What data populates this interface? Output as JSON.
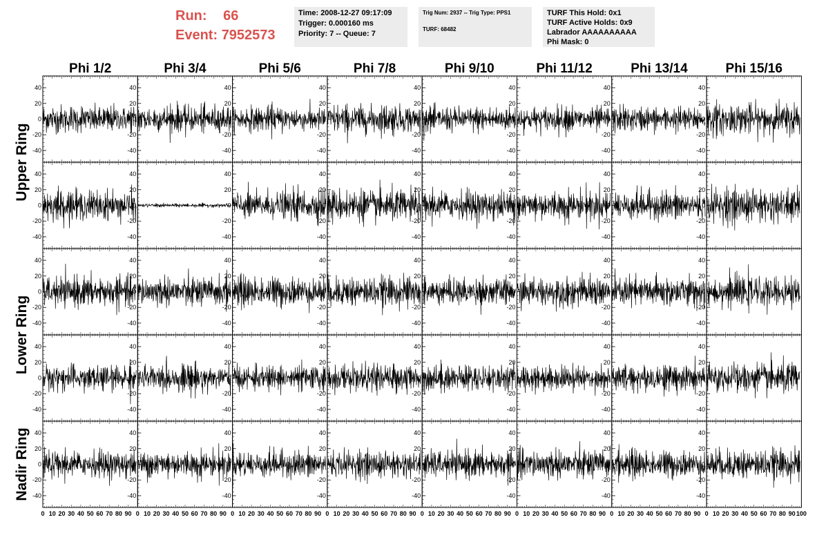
{
  "header": {
    "run_label": "Run:",
    "run_value": "66",
    "event_label": "Event:",
    "event_value": "7952573",
    "time_box": [
      "Time: 2008-12-27 09:17:09",
      "Trigger: 0.000160 ms",
      "Priority: 7 -- Queue: 7"
    ],
    "trig_box": [
      "Trig Num: 2937 -- Trig Type: PPS1",
      "TURF: 68482"
    ],
    "turf_box": [
      "TURF This Hold: 0x1",
      "TURF Active Holds: 0x9",
      "Labrador AAAAAAAAAA",
      "Phi Mask: 0"
    ],
    "accent_color": "#d9534f",
    "box_color": "#ececec"
  },
  "chart_data": {
    "type": "line",
    "columns": [
      "Phi 1/2",
      "Phi 3/4",
      "Phi 5/6",
      "Phi 7/8",
      "Phi 9/10",
      "Phi 11/12",
      "Phi 13/14",
      "Phi 15/16"
    ],
    "row_groups": [
      {
        "label": "Upper Ring",
        "rows": [
          0,
          1
        ]
      },
      {
        "label": "Lower Ring",
        "rows": [
          2,
          3
        ]
      },
      {
        "label": "Nadir Ring",
        "rows": [
          4
        ]
      }
    ],
    "xlim": [
      0,
      100
    ],
    "ylim": [
      -55,
      55
    ],
    "yticks": [
      -40,
      -20,
      0,
      20,
      40
    ],
    "xtick_labels": [
      "0",
      "10",
      "20",
      "30",
      "40",
      "50",
      "60",
      "70",
      "80",
      "90",
      "100"
    ],
    "samples_per_trace": 260,
    "trace_rms": [
      [
        11,
        11,
        10,
        12,
        10,
        10,
        10,
        13
      ],
      [
        12,
        1.5,
        12,
        13,
        12,
        12,
        12,
        14
      ],
      [
        12,
        12,
        12,
        12,
        11,
        12,
        12,
        12
      ],
      [
        11,
        11,
        10,
        11,
        11,
        10,
        11,
        13
      ],
      [
        11,
        11,
        11,
        11,
        11,
        12,
        11,
        12
      ]
    ],
    "trace_color": "#000000"
  }
}
